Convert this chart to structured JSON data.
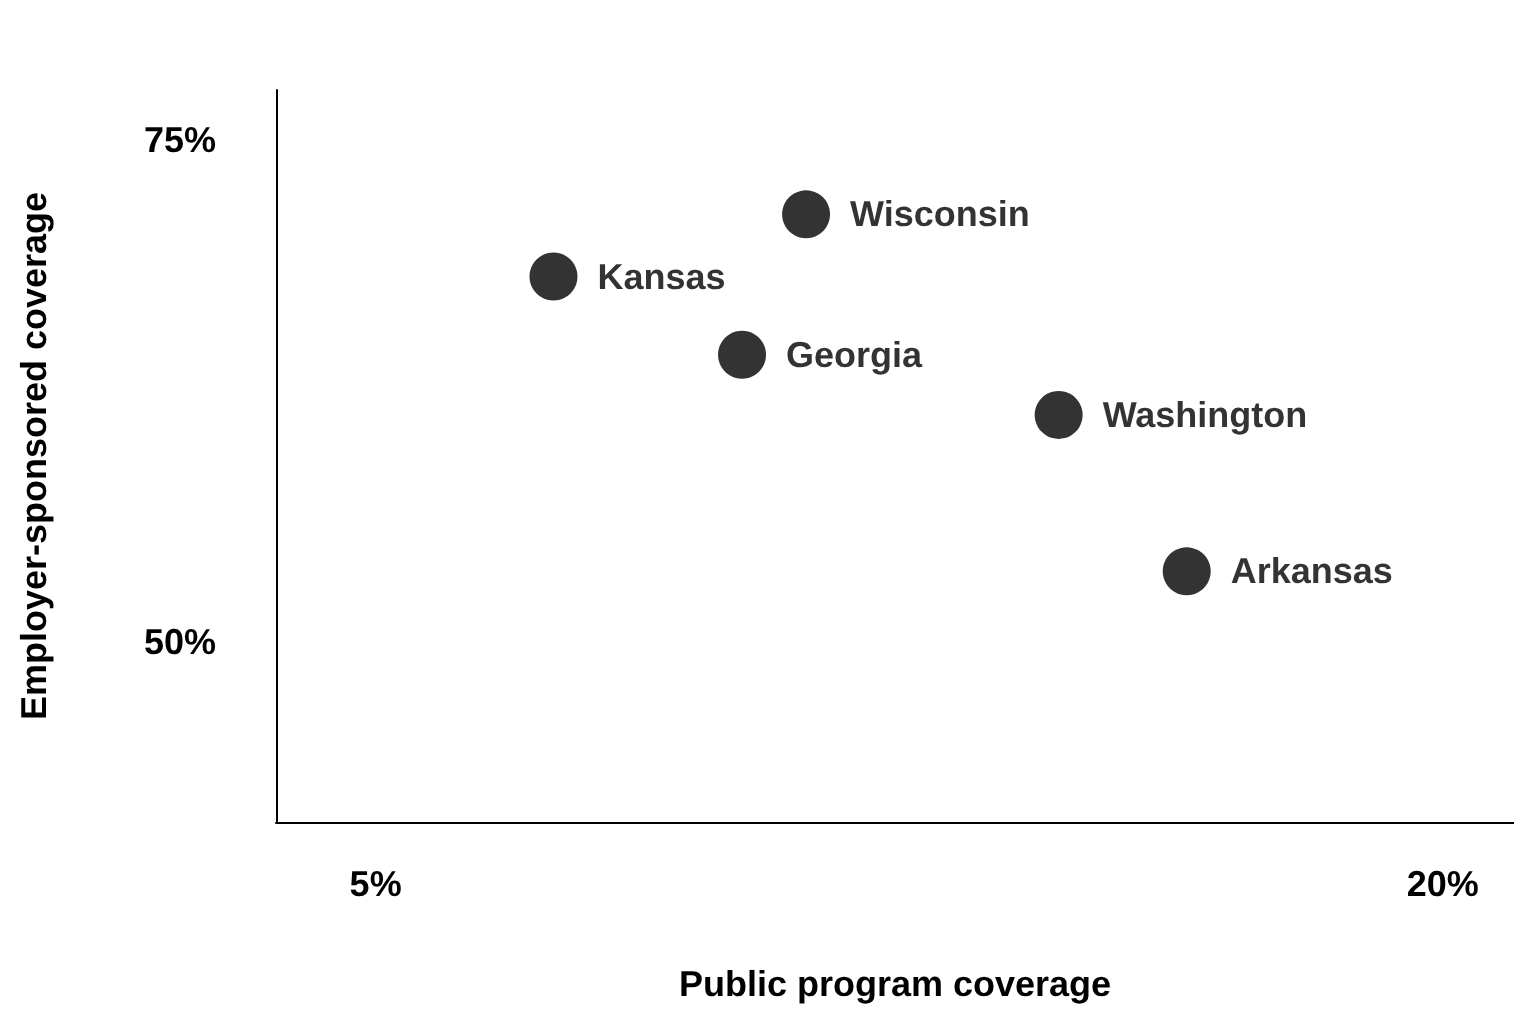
{
  "chart_data": {
    "type": "scatter",
    "xlabel": "Public program coverage",
    "ylabel": "Employer-sponsored coverage",
    "xlim": [
      3.6,
      21
    ],
    "ylim": [
      41,
      77.5
    ],
    "xticks": [
      {
        "value": 5,
        "label": "5%"
      },
      {
        "value": 20,
        "label": "20%"
      }
    ],
    "yticks": [
      {
        "value": 50,
        "label": "50%"
      },
      {
        "value": 75,
        "label": "75%"
      }
    ],
    "grid": false,
    "legend": false,
    "marker": "circle",
    "series": [
      {
        "name": "Wisconsin",
        "color": "#000000",
        "x": [
          11.05
        ],
        "values": [
          71.3
        ]
      },
      {
        "name": "Kansas",
        "color": "#000000",
        "x": [
          7.5
        ],
        "values": [
          68.2
        ]
      },
      {
        "name": "Georgia",
        "color": "#000000",
        "x": [
          10.15
        ],
        "values": [
          64.3
        ]
      },
      {
        "name": "Washington",
        "color": "#000000",
        "x": [
          14.6
        ],
        "values": [
          61.3
        ]
      },
      {
        "name": "Arkansas",
        "color": "#000000",
        "x": [
          16.4
        ],
        "values": [
          53.5
        ]
      }
    ]
  }
}
